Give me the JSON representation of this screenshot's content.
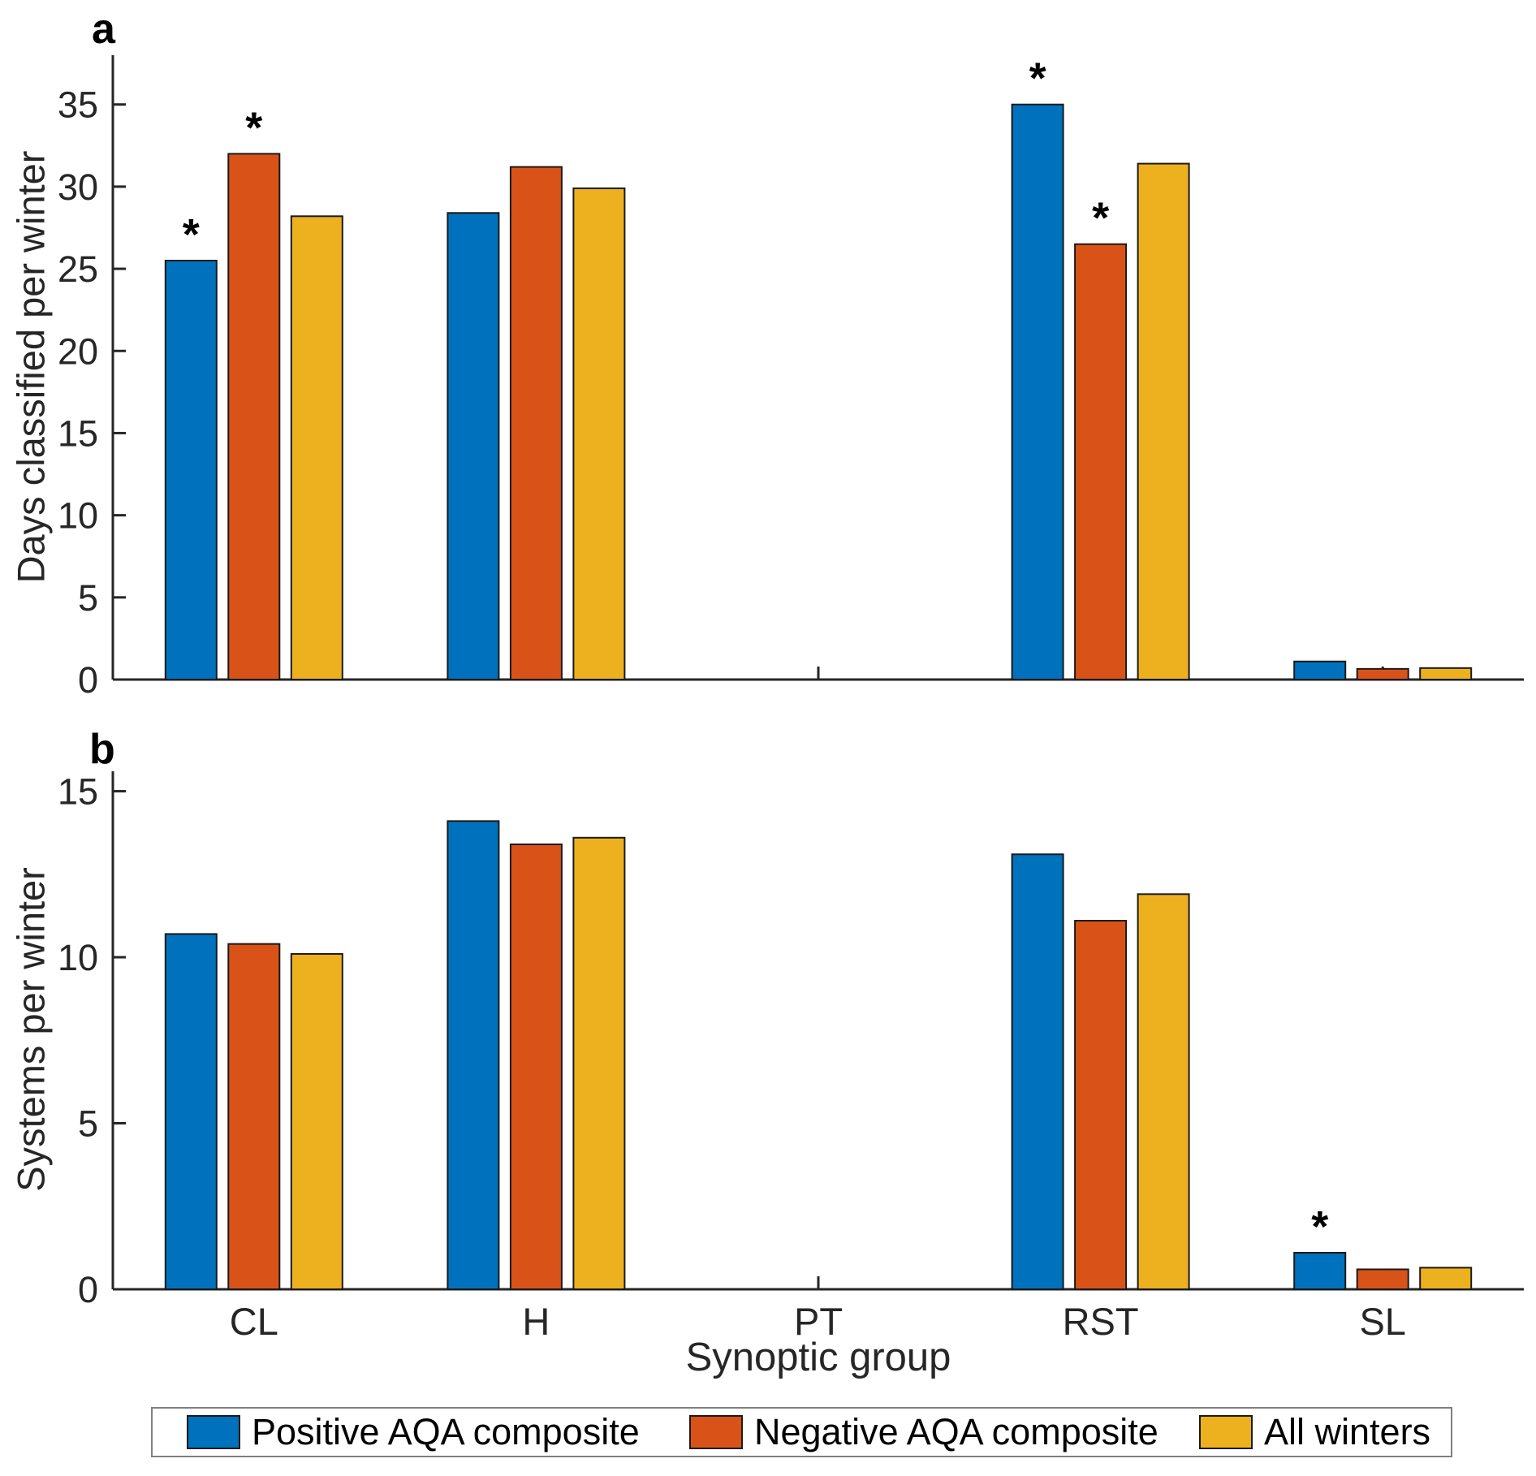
{
  "figure": {
    "xlabel": "Synoptic group",
    "categories": [
      "CL",
      "H",
      "PT",
      "RST",
      "SL"
    ],
    "legend": [
      {
        "label": "Positive AQA composite",
        "color": "#0072BD"
      },
      {
        "label": "Negative AQA composite",
        "color": "#D95319"
      },
      {
        "label": "All winters",
        "color": "#EDB120"
      }
    ],
    "colors": {
      "positive": "#0072BD",
      "negative": "#D95319",
      "all_winters": "#EDB120",
      "axis": "#262626",
      "bar_edge": "#1a1a1a"
    }
  },
  "chart_data": [
    {
      "type": "bar",
      "panel_label": "a",
      "ylabel": "Days classified per winter",
      "xlabel": "Synoptic group",
      "categories": [
        "CL",
        "H",
        "PT",
        "RST",
        "SL"
      ],
      "series": [
        {
          "name": "Positive AQA composite",
          "color": "#0072BD",
          "values": [
            25.5,
            28.4,
            0,
            35.0,
            1.1
          ]
        },
        {
          "name": "Negative AQA composite",
          "color": "#D95319",
          "values": [
            32.0,
            31.2,
            0,
            26.5,
            0.65
          ]
        },
        {
          "name": "All winters",
          "color": "#EDB120",
          "values": [
            28.2,
            29.9,
            0,
            31.4,
            0.7
          ]
        }
      ],
      "significance_asterisks": [
        {
          "category": "CL",
          "series": "Positive AQA composite"
        },
        {
          "category": "CL",
          "series": "Negative AQA composite"
        },
        {
          "category": "RST",
          "series": "Positive AQA composite"
        },
        {
          "category": "RST",
          "series": "Negative AQA composite"
        }
      ],
      "ylim": [
        0,
        38
      ],
      "yticks": [
        0,
        5,
        10,
        15,
        20,
        25,
        30,
        35
      ],
      "grid": false,
      "show_category_labels": false,
      "legend_position": "none"
    },
    {
      "type": "bar",
      "panel_label": "b",
      "ylabel": "Systems per winter",
      "xlabel": "Synoptic group",
      "categories": [
        "CL",
        "H",
        "PT",
        "RST",
        "SL"
      ],
      "series": [
        {
          "name": "Positive AQA composite",
          "color": "#0072BD",
          "values": [
            10.7,
            14.1,
            0,
            13.1,
            1.1
          ]
        },
        {
          "name": "Negative AQA composite",
          "color": "#D95319",
          "values": [
            10.4,
            13.4,
            0,
            11.1,
            0.6
          ]
        },
        {
          "name": "All winters",
          "color": "#EDB120",
          "values": [
            10.1,
            13.6,
            0,
            11.9,
            0.65
          ]
        }
      ],
      "significance_asterisks": [
        {
          "category": "SL",
          "series": "Positive AQA composite"
        }
      ],
      "ylim": [
        0,
        15.6
      ],
      "yticks": [
        0,
        5,
        10,
        15
      ],
      "grid": false,
      "show_category_labels": true,
      "legend_position": "below"
    }
  ]
}
